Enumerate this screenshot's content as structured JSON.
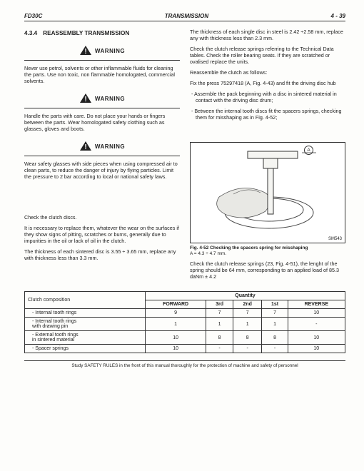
{
  "header": {
    "left": "FD30C",
    "center": "TRANSMISSION",
    "right": "4 - 39"
  },
  "section": {
    "number": "4.3.4",
    "title": "REASSEMBLY TRANSMISSION"
  },
  "warnings": {
    "label": "WARNING",
    "w1": "Never use petrol, solvents or other inflammable fluids for cleaning the parts. Use non toxic, non flammable homologated, commercial solvents.",
    "w2": "Handle the parts with care. Do not place your hands or fingers between the parts. Wear homologated safety clothing such as glasses, gloves and boots.",
    "w3": "Wear safety glasses with side pieces when using compressed air to clean parts, to reduce the danger of injury by flying particles. Limit the pressure to 2 bar according to local or national safety laws."
  },
  "left": {
    "p1": "Check the clutch discs.",
    "p2": "It is necessary to replace them, whatever the wear on the surfaces if they show signs of pitting, scratches or burns, generally due to impurities in the oil or lack of oil in the clutch.",
    "p3": "The thickness of each sintered disc is 3.55 ÷ 3.65 mm, replace any with thickness less than 3.3 mm."
  },
  "right": {
    "p1": "The thickness of each single disc in steel is 2.42 ÷2.58 mm, replace any with thickness less than 2.3 mm.",
    "p2": "Check the clutch release springs referring to the Technical Data tables. Check the roller bearing seats. If they are scratched or ovalised replace the units.",
    "p3": "Reassemble the clutch as follows:",
    "p4": "Fix the press 75297418 (A, Fig. 4-43) and fit the driving disc hub",
    "b1": "-  Assemble the pack beginning with a disc in sintered material in contact with the driving disc drum;",
    "b2": "-  Between the internal tooth discs fit the spacers springs, checking them for misshaping as in Fig. 4-52;",
    "fig_a": "A",
    "fig_code": "SM543",
    "fig_caption": "Fig. 4-52   Checking the spacers spring for misshaping",
    "fig_sub": "A = 4.3 ÷ 4.7 mm.",
    "p5": "Check the clutch release springs (23, Fig. 4-51), the lenght of the spring should be 64 mm, corresponding to an applied load of 85.3 daNm ± 4.2"
  },
  "table": {
    "head_compo": "Clutch composition",
    "head_qty": "Quantity",
    "cols": [
      "FORWARD",
      "3rd",
      "2nd",
      "1st",
      "REVERSE"
    ],
    "rows": [
      {
        "label": "- Internal tooth rings",
        "vals": [
          "9",
          "7",
          "7",
          "7",
          "10"
        ]
      },
      {
        "label": "- Internal tooth rings\n  with drawing pin",
        "vals": [
          "1",
          "1",
          "1",
          "1",
          "-"
        ]
      },
      {
        "label": "- External tooth rings\n  in sintered material",
        "vals": [
          "10",
          "8",
          "8",
          "8",
          "10"
        ]
      },
      {
        "label": "- Spacer springs",
        "vals": [
          "10",
          "-",
          "-",
          "-",
          "10"
        ]
      }
    ]
  },
  "footer": "Study SAFETY RULES in the front of this manual thoroughly for the protection of machine and safety of personnel"
}
